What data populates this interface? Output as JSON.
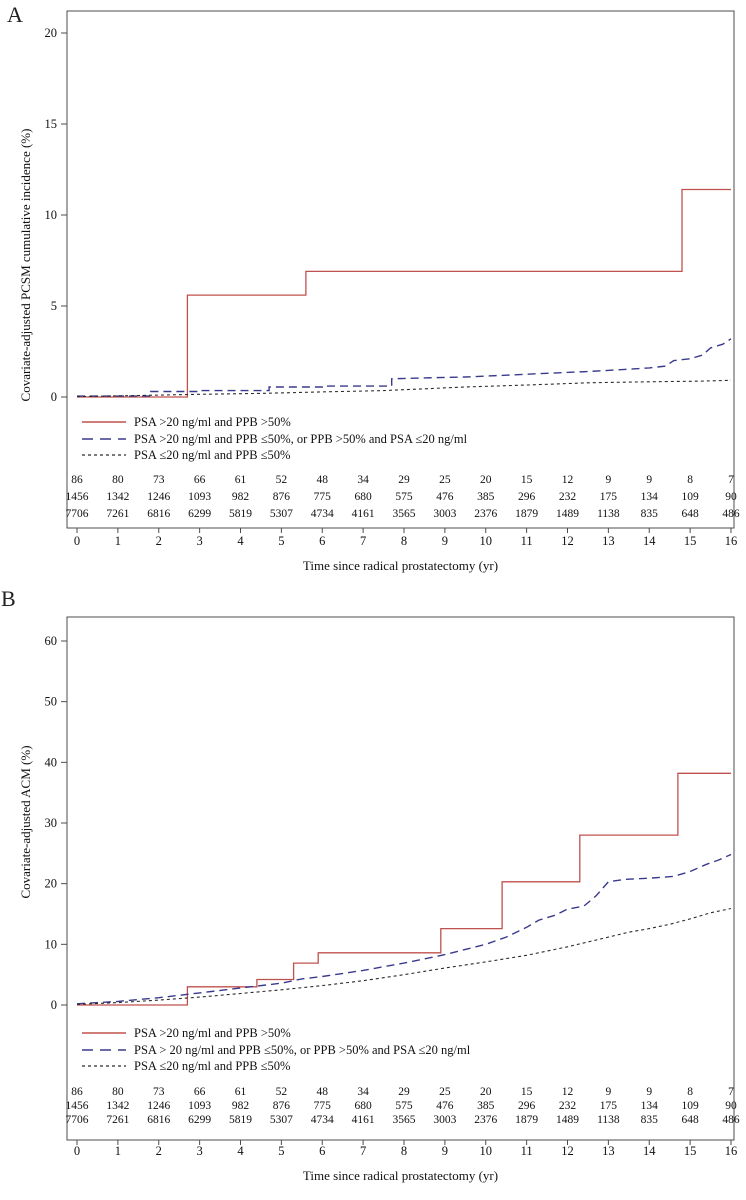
{
  "figure_title": "",
  "chart_data": [
    {
      "type": "line",
      "step": true,
      "panel_label": "A",
      "ylabel": "Covariate-adjusted PCSM cumulative incidence (%)",
      "xlabel": "Time since radical prostatectomy (yr)",
      "ylim": [
        0,
        21
      ],
      "xlim": [
        0,
        16
      ],
      "y_ticks": [
        0,
        5,
        10,
        15,
        20
      ],
      "x_ticks": [
        0,
        1,
        2,
        3,
        4,
        5,
        6,
        7,
        8,
        9,
        10,
        11,
        12,
        13,
        14,
        15,
        16
      ],
      "grid": "off",
      "legend_position": "inside-below-curves",
      "series": [
        {
          "name": "PSA >20 ng/ml and PPB >50%",
          "color": "#c0504d",
          "dash": "",
          "legend_dash": "",
          "width": 1.3,
          "points": [
            [
              0,
              0
            ],
            [
              2.7,
              0
            ],
            [
              2.7,
              5.6
            ],
            [
              5.6,
              5.6
            ],
            [
              5.6,
              6.9
            ],
            [
              14.8,
              6.9
            ],
            [
              14.8,
              11.4
            ],
            [
              16,
              11.4
            ]
          ]
        },
        {
          "name": "PSA >20 ng/ml and PPB ≤50%, or PPB >50% and PSA ≤20 ng/ml",
          "color": "#3a3a8c",
          "dash": "8,5",
          "legend_dash": "11,7",
          "width": 1.4,
          "points": [
            [
              0,
              0.05
            ],
            [
              1.8,
              0.05
            ],
            [
              1.8,
              0.3
            ],
            [
              3,
              0.3
            ],
            [
              3,
              0.35
            ],
            [
              4.7,
              0.35
            ],
            [
              4.7,
              0.55
            ],
            [
              6,
              0.55
            ],
            [
              6,
              0.6
            ],
            [
              7.7,
              0.6
            ],
            [
              7.7,
              1.0
            ],
            [
              8.5,
              1.05
            ],
            [
              9.5,
              1.1
            ],
            [
              10.5,
              1.2
            ],
            [
              11.5,
              1.3
            ],
            [
              12.5,
              1.4
            ],
            [
              13.3,
              1.5
            ],
            [
              14,
              1.6
            ],
            [
              14.4,
              1.7
            ],
            [
              14.6,
              2.0
            ],
            [
              15,
              2.1
            ],
            [
              15.3,
              2.3
            ],
            [
              15.5,
              2.7
            ],
            [
              15.8,
              2.9
            ],
            [
              16,
              3.2
            ]
          ]
        },
        {
          "name": "PSA ≤20 ng/ml and PPB ≤50%",
          "color": "#2b2b2b",
          "dash": "3,3",
          "legend_dash": "3,3",
          "width": 1.1,
          "points": [
            [
              0,
              0.02
            ],
            [
              1.5,
              0.08
            ],
            [
              3,
              0.15
            ],
            [
              4.5,
              0.2
            ],
            [
              6,
              0.28
            ],
            [
              7.5,
              0.35
            ],
            [
              8.5,
              0.45
            ],
            [
              9.5,
              0.55
            ],
            [
              10.5,
              0.62
            ],
            [
              11.5,
              0.7
            ],
            [
              12.5,
              0.78
            ],
            [
              13.5,
              0.82
            ],
            [
              14.5,
              0.85
            ],
            [
              15.2,
              0.87
            ],
            [
              16,
              0.92
            ]
          ]
        }
      ],
      "numbers_at_risk": {
        "x": [
          0,
          1,
          2,
          3,
          4,
          5,
          6,
          7,
          8,
          9,
          10,
          11,
          12,
          13,
          14,
          15,
          16
        ],
        "rows": [
          [
            86,
            80,
            73,
            66,
            61,
            52,
            48,
            34,
            29,
            25,
            20,
            15,
            12,
            9,
            9,
            8,
            7
          ],
          [
            1456,
            1342,
            1246,
            1093,
            982,
            876,
            775,
            680,
            575,
            476,
            385,
            296,
            232,
            175,
            134,
            109,
            90
          ],
          [
            7706,
            7261,
            6816,
            6299,
            5819,
            5307,
            4734,
            4161,
            3565,
            3003,
            2376,
            1879,
            1489,
            1138,
            835,
            648,
            486
          ]
        ]
      }
    },
    {
      "type": "line",
      "step": true,
      "panel_label": "B",
      "ylabel": "Covariate-adjusted ACM (%)",
      "xlabel": "Time since radical prostatectomy (yr)",
      "ylim": [
        0,
        64
      ],
      "xlim": [
        0,
        16
      ],
      "y_ticks": [
        0,
        10,
        20,
        30,
        40,
        50,
        60
      ],
      "x_ticks": [
        0,
        1,
        2,
        3,
        4,
        5,
        6,
        7,
        8,
        9,
        10,
        11,
        12,
        13,
        14,
        15,
        16
      ],
      "grid": "off",
      "legend_position": "inside-below-curves",
      "series": [
        {
          "name": "PSA >20 ng/ml and PPB >50%",
          "color": "#c0504d",
          "dash": "",
          "legend_dash": "",
          "width": 1.3,
          "points": [
            [
              0,
              0
            ],
            [
              2.7,
              0
            ],
            [
              2.7,
              3.0
            ],
            [
              4.4,
              3.0
            ],
            [
              4.4,
              4.2
            ],
            [
              5.3,
              4.2
            ],
            [
              5.3,
              6.9
            ],
            [
              5.9,
              6.9
            ],
            [
              5.9,
              8.6
            ],
            [
              8.9,
              8.6
            ],
            [
              8.9,
              12.6
            ],
            [
              10.4,
              12.6
            ],
            [
              10.4,
              20.3
            ],
            [
              12.3,
              20.3
            ],
            [
              12.3,
              28.0
            ],
            [
              14.7,
              28.0
            ],
            [
              14.7,
              38.2
            ],
            [
              16,
              38.2
            ]
          ]
        },
        {
          "name": "PSA > 20 ng/ml and PPB ≤50%, or PPB >50% and PSA ≤20 ng/ml",
          "color": "#3a3a8c",
          "dash": "8,5",
          "legend_dash": "11,7",
          "width": 1.4,
          "points": [
            [
              0,
              0.2
            ],
            [
              1,
              0.6
            ],
            [
              2,
              1.2
            ],
            [
              3,
              2.0
            ],
            [
              4,
              2.8
            ],
            [
              5,
              3.6
            ],
            [
              5.5,
              4.3
            ],
            [
              6,
              4.7
            ],
            [
              7,
              5.7
            ],
            [
              8,
              6.9
            ],
            [
              9,
              8.3
            ],
            [
              10,
              10.0
            ],
            [
              10.5,
              11.2
            ],
            [
              11,
              12.8
            ],
            [
              11.3,
              14.0
            ],
            [
              11.7,
              14.8
            ],
            [
              12,
              15.8
            ],
            [
              12.4,
              16.3
            ],
            [
              12.7,
              18.0
            ],
            [
              13,
              20.3
            ],
            [
              13.4,
              20.7
            ],
            [
              14,
              20.9
            ],
            [
              14.6,
              21.2
            ],
            [
              15,
              22.0
            ],
            [
              15.4,
              23.2
            ],
            [
              15.7,
              23.9
            ],
            [
              16,
              24.8
            ]
          ]
        },
        {
          "name": "PSA ≤20 ng/ml  and PPB ≤50%",
          "color": "#2b2b2b",
          "dash": "3,3",
          "legend_dash": "3,3",
          "width": 1.1,
          "points": [
            [
              0,
              0.1
            ],
            [
              1,
              0.4
            ],
            [
              2,
              0.8
            ],
            [
              3,
              1.3
            ],
            [
              4,
              1.9
            ],
            [
              5,
              2.5
            ],
            [
              6,
              3.2
            ],
            [
              7,
              4.0
            ],
            [
              8,
              5.0
            ],
            [
              9,
              6.1
            ],
            [
              10,
              7.1
            ],
            [
              11,
              8.2
            ],
            [
              12,
              9.6
            ],
            [
              13,
              11.2
            ],
            [
              13.5,
              12.0
            ],
            [
              14,
              12.6
            ],
            [
              14.5,
              13.3
            ],
            [
              15,
              14.2
            ],
            [
              15.5,
              15.2
            ],
            [
              16,
              15.9
            ]
          ]
        }
      ],
      "numbers_at_risk": {
        "x": [
          0,
          1,
          2,
          3,
          4,
          5,
          6,
          7,
          8,
          9,
          10,
          11,
          12,
          13,
          14,
          15,
          16
        ],
        "rows": [
          [
            86,
            80,
            73,
            66,
            61,
            52,
            48,
            34,
            29,
            25,
            20,
            15,
            12,
            9,
            9,
            8,
            7
          ],
          [
            1456,
            1342,
            1246,
            1093,
            982,
            876,
            775,
            680,
            575,
            476,
            385,
            296,
            232,
            175,
            134,
            109,
            90
          ],
          [
            7706,
            7261,
            6816,
            6299,
            5819,
            5307,
            4734,
            4161,
            3565,
            3003,
            2376,
            1879,
            1489,
            1138,
            835,
            648,
            486
          ]
        ]
      }
    }
  ],
  "colors": {
    "group_high": "#c0504d",
    "group_intermediate": "#3a3a8c",
    "group_low": "#2b2b2b",
    "axis": "#4d4d4d",
    "text": "#111111",
    "background": "#ffffff"
  }
}
